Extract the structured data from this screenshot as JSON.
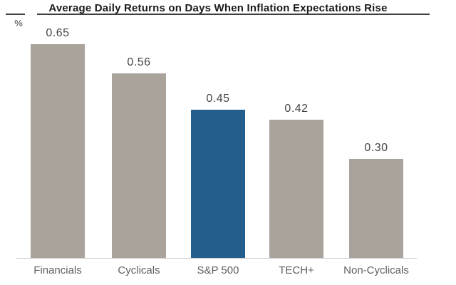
{
  "title": "Average Daily Returns on Days When Inflation Expectations Rise",
  "unit_label": "%",
  "chart_data": {
    "type": "bar",
    "title": "Average Daily Returns on Days When Inflation Expectations Rise",
    "categories": [
      "Financials",
      "Cyclicals",
      "S&P 500",
      "TECH+",
      "Non-Cyclicals"
    ],
    "values": [
      0.65,
      0.56,
      0.45,
      0.42,
      0.3
    ],
    "value_labels": [
      "0.65",
      "0.56",
      "0.45",
      "0.42",
      "0.30"
    ],
    "xlabel": "",
    "ylabel": "%",
    "ylim": [
      0,
      0.78
    ],
    "grid": false,
    "legend": "none",
    "y_axis_ticks": "none",
    "highlight_category": "S&P 500",
    "colors": {
      "bar": "#A9A39C",
      "highlight": "#245E8C",
      "axis_line": "#CCCCCC",
      "title_rule": "#3F3F3F",
      "title_text": "#1A1A1A",
      "value_label_text": "#454545",
      "category_label_text": "#5F5F5F",
      "background": "#FFFFFF"
    }
  }
}
